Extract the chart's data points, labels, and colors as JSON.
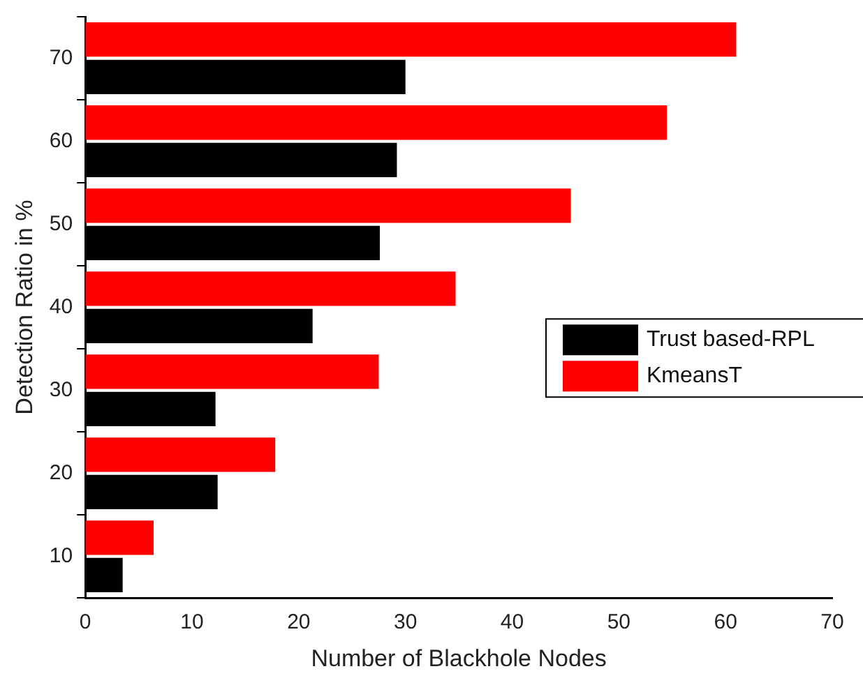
{
  "chart_data": {
    "type": "bar",
    "orientation": "horizontal",
    "xlabel": "Number of Blackhole Nodes",
    "ylabel": "Detection Ratio in %",
    "categories": [
      "70",
      "60",
      "50",
      "40",
      "30",
      "20",
      "10"
    ],
    "series": [
      {
        "name": "Trust based-RPL",
        "color": "#000000",
        "values": [
          30.0,
          29.2,
          27.6,
          21.3,
          12.2,
          12.4,
          3.5
        ]
      },
      {
        "name": "KmeansT",
        "color": "#ff0000",
        "values": [
          61.0,
          54.5,
          45.5,
          34.7,
          27.5,
          17.8,
          6.4
        ]
      }
    ],
    "xlim": [
      0,
      70
    ],
    "xticks": [
      0,
      10,
      20,
      30,
      40,
      50,
      60,
      70
    ],
    "grid": false,
    "legend": "right"
  }
}
